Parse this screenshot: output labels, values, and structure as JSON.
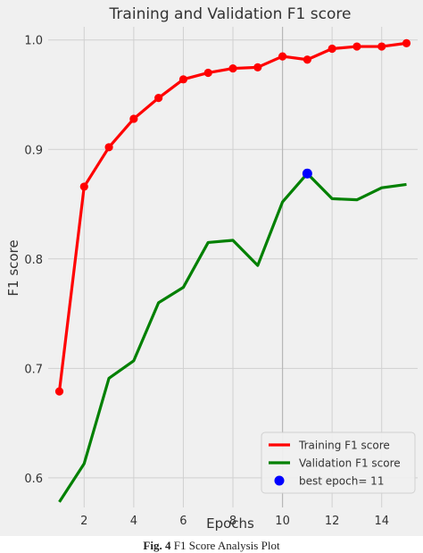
{
  "chart_data": {
    "type": "line",
    "title": "Training and Validation F1 score",
    "xlabel": "Epochs",
    "ylabel": "F1  score",
    "xlim": [
      0.55,
      15.45
    ],
    "ylim": [
      0.573,
      1.012
    ],
    "x_ticks": [
      2,
      4,
      6,
      8,
      10,
      12,
      14
    ],
    "y_ticks": [
      0.6,
      0.7,
      0.8,
      0.9,
      1.0
    ],
    "y_tick_labels": [
      "0.6",
      "0.7",
      "0.8",
      "0.9",
      "1.0"
    ],
    "grid": true,
    "legend_position": "lower-right",
    "series": [
      {
        "name": "Training F1 score",
        "color": "#ff0000",
        "x": [
          1,
          2,
          3,
          4,
          5,
          6,
          7,
          8,
          9,
          10,
          11,
          12,
          13,
          14,
          15
        ],
        "values": [
          0.679,
          0.866,
          0.902,
          0.928,
          0.947,
          0.964,
          0.97,
          0.974,
          0.975,
          0.985,
          0.982,
          0.992,
          0.994,
          0.994,
          0.997
        ],
        "markers": true
      },
      {
        "name": "Validation F1 score",
        "color": "#008000",
        "x": [
          1,
          2,
          3,
          4,
          5,
          6,
          7,
          8,
          9,
          10,
          11,
          12,
          13,
          14,
          15
        ],
        "values": [
          0.578,
          0.613,
          0.691,
          0.707,
          0.76,
          0.774,
          0.815,
          0.817,
          0.794,
          0.852,
          0.878,
          0.855,
          0.854,
          0.865,
          0.868
        ],
        "markers": false
      }
    ],
    "best_point": {
      "name": "best epoch= 11",
      "x": 11,
      "y": 0.878,
      "color": "#0000ff"
    },
    "vline_x": 10
  },
  "caption": {
    "label": "Fig. 4",
    "text": " F1 Score Analysis Plot"
  }
}
